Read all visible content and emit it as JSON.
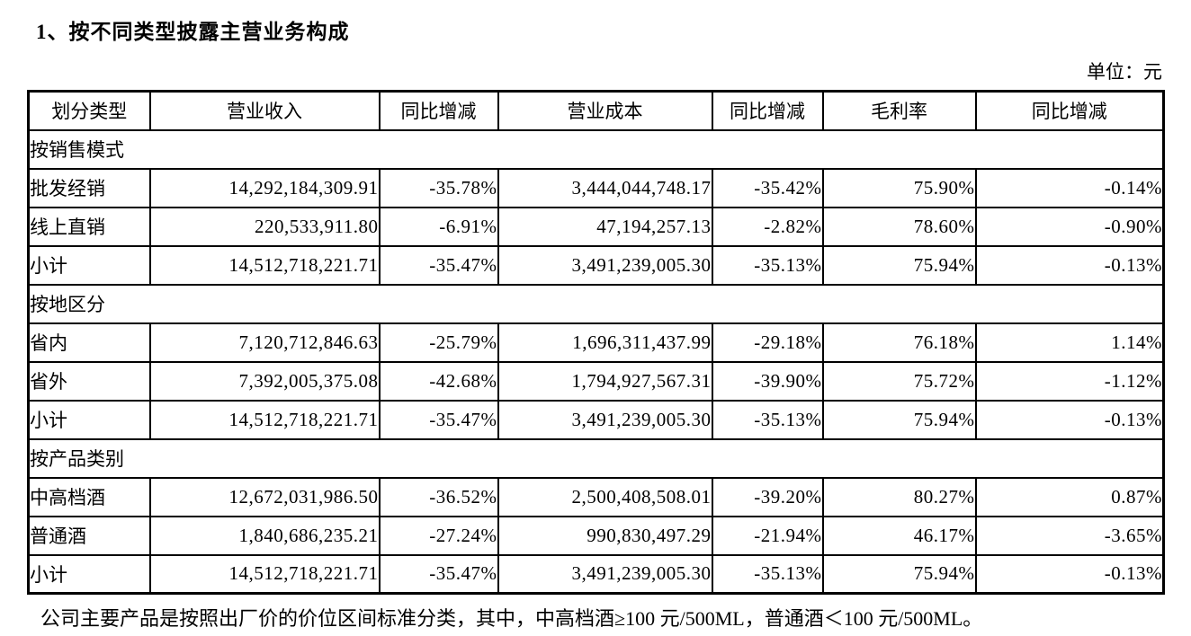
{
  "page": {
    "title": "1、按不同类型披露主营业务构成",
    "unit_label": "单位：元",
    "footnote": "公司主要产品是按照出厂价的价位区间标准分类，其中，中高档酒≥100 元/500ML，普通酒＜100 元/500ML。"
  },
  "table": {
    "headers": [
      "划分类型",
      "营业收入",
      "同比增减",
      "营业成本",
      "同比增减",
      "毛利率",
      "同比增减"
    ],
    "sections": [
      {
        "label": "按销售模式",
        "rows": [
          {
            "cells": [
              "批发经销",
              "14,292,184,309.91",
              "-35.78%",
              "3,444,044,748.17",
              "-35.42%",
              "75.90%",
              "-0.14%"
            ]
          },
          {
            "cells": [
              "线上直销",
              "220,533,911.80",
              "-6.91%",
              "47,194,257.13",
              "-2.82%",
              "78.60%",
              "-0.90%"
            ]
          },
          {
            "cells": [
              "小计",
              "14,512,718,221.71",
              "-35.47%",
              "3,491,239,005.30",
              "-35.13%",
              "75.94%",
              "-0.13%"
            ]
          }
        ]
      },
      {
        "label": "按地区分",
        "rows": [
          {
            "cells": [
              "省内",
              "7,120,712,846.63",
              "-25.79%",
              "1,696,311,437.99",
              "-29.18%",
              "76.18%",
              "1.14%"
            ]
          },
          {
            "cells": [
              "省外",
              "7,392,005,375.08",
              "-42.68%",
              "1,794,927,567.31",
              "-39.90%",
              "75.72%",
              "-1.12%"
            ]
          },
          {
            "cells": [
              "小计",
              "14,512,718,221.71",
              "-35.47%",
              "3,491,239,005.30",
              "-35.13%",
              "75.94%",
              "-0.13%"
            ]
          }
        ]
      },
      {
        "label": "按产品类别",
        "rows": [
          {
            "cells": [
              "中高档酒",
              "12,672,031,986.50",
              "-36.52%",
              "2,500,408,508.01",
              "-39.20%",
              "80.27%",
              "0.87%"
            ]
          },
          {
            "cells": [
              "普通酒",
              "1,840,686,235.21",
              "-27.24%",
              "990,830,497.29",
              "-21.94%",
              "46.17%",
              "-3.65%"
            ]
          },
          {
            "cells": [
              "小计",
              "14,512,718,221.71",
              "-35.47%",
              "3,491,239,005.30",
              "-35.13%",
              "75.94%",
              "-0.13%"
            ]
          }
        ]
      }
    ]
  }
}
